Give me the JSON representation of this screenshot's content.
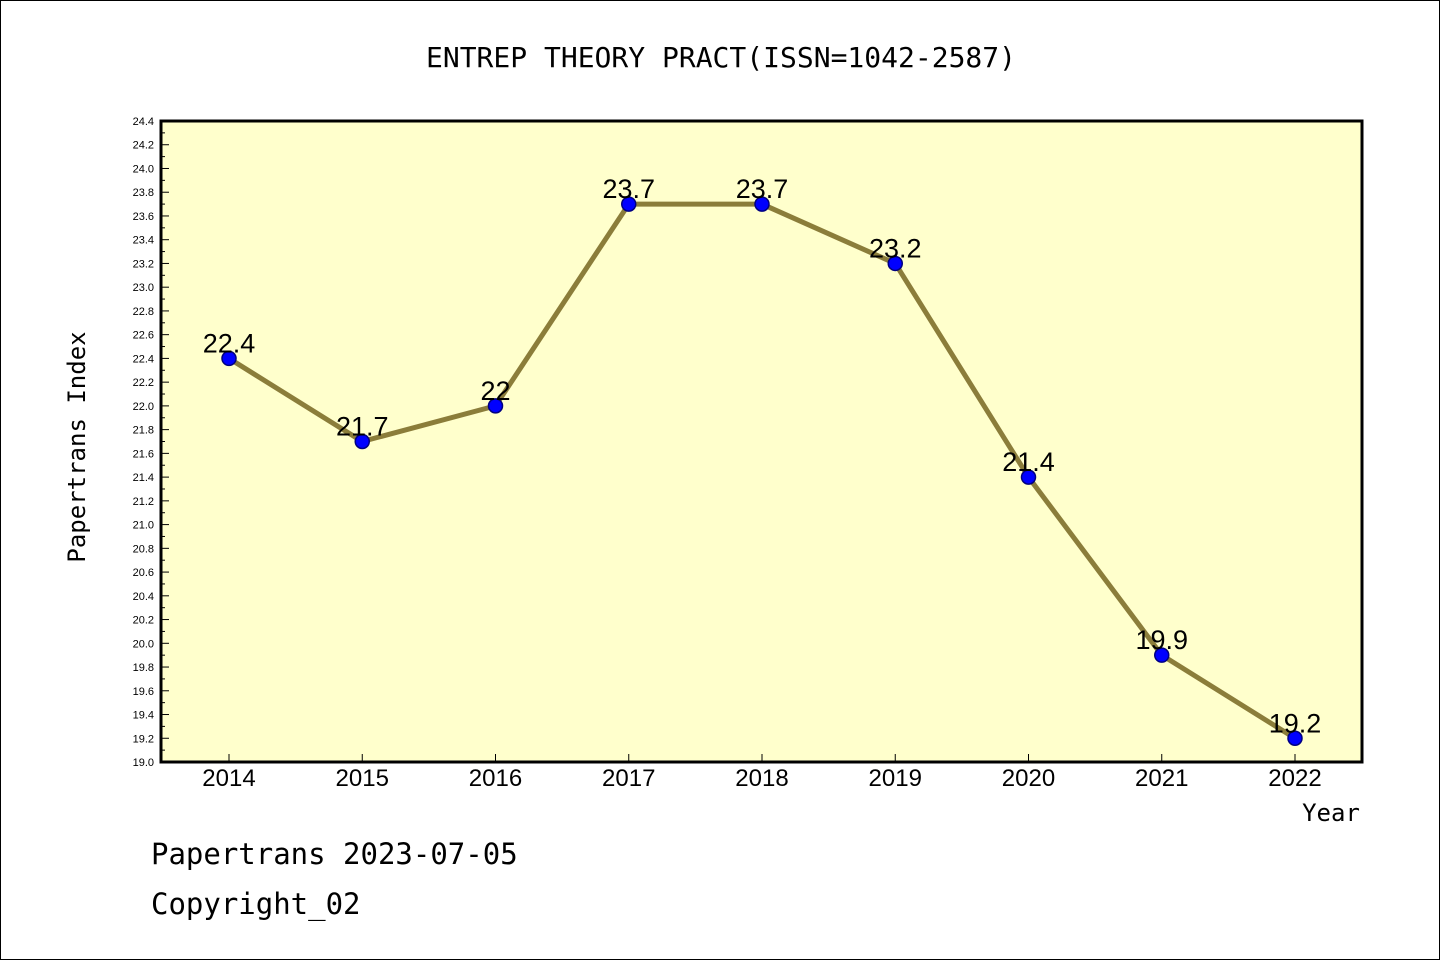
{
  "footer": {
    "line1": "Papertrans 2023-07-05",
    "line2": "Copyright_02"
  },
  "colors": {
    "plot_background": "#ffffcc",
    "line": "#8b7d3a",
    "marker_fill": "#0000ff",
    "marker_stroke": "#000080",
    "frame": "#000000"
  },
  "chart_data": {
    "type": "line",
    "title": "ENTREP THEORY PRACT(ISSN=1042-2587)",
    "xlabel": "Year",
    "ylabel": "Papertrans Index",
    "categories": [
      "2014",
      "2015",
      "2016",
      "2017",
      "2018",
      "2019",
      "2020",
      "2021",
      "2022"
    ],
    "series": [
      {
        "values": [
          22.4,
          21.7,
          22.0,
          23.7,
          23.7,
          23.2,
          21.4,
          19.9,
          19.2
        ],
        "data_labels": [
          "22.4",
          "21.7",
          "22",
          "23.7",
          "23.7",
          "23.2",
          "21.4",
          "19.9",
          "19.2"
        ]
      }
    ],
    "ylim": [
      19.0,
      24.4
    ],
    "yticks": [
      "19.0",
      "19.2",
      "19.4",
      "19.6",
      "19.8",
      "20.0",
      "20.2",
      "20.4",
      "20.6",
      "20.8",
      "21.0",
      "21.2",
      "21.4",
      "21.6",
      "21.8",
      "22.0",
      "22.2",
      "22.4",
      "22.6",
      "22.8",
      "23.0",
      "23.2",
      "23.4",
      "23.6",
      "23.8",
      "24.0",
      "24.2",
      "24.4"
    ],
    "grid": false,
    "legend": "none"
  }
}
